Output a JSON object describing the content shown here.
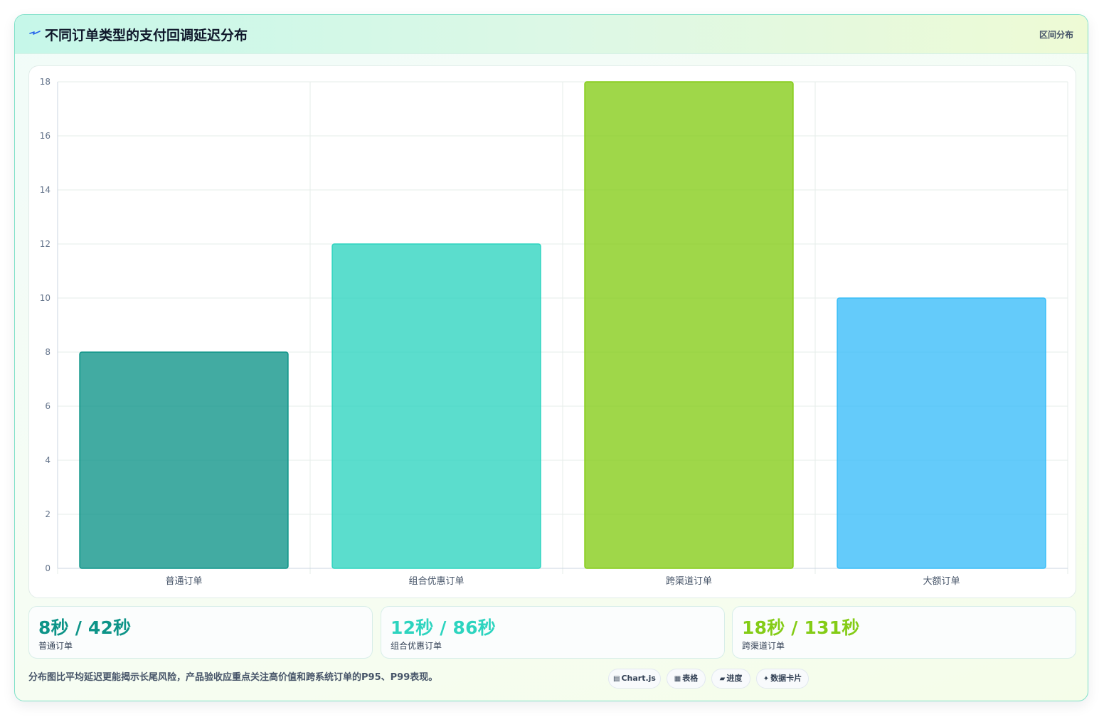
{
  "header": {
    "icon": "lightning-icon",
    "title": "不同订单类型的支付回调延迟分布",
    "tag": "区间分布"
  },
  "colors": {
    "teal_dark": "#0d9488",
    "teal_light": "#2dd4bf",
    "lime": "#84cc16",
    "sky": "#38bdf8"
  },
  "chart_data": {
    "type": "bar",
    "categories": [
      "普通订单",
      "组合优惠订单",
      "跨渠道订单",
      "大额订单"
    ],
    "values": [
      8,
      12,
      18,
      10
    ],
    "bar_colors": [
      "#0d9488",
      "#2dd4bf",
      "#84cc16",
      "#38bdf8"
    ],
    "ylim": [
      0,
      18
    ],
    "yticks": [
      0,
      2,
      4,
      6,
      8,
      10,
      12,
      14,
      16,
      18
    ],
    "grid": true,
    "title": "",
    "xlabel": "",
    "ylabel": ""
  },
  "stats": [
    {
      "value": "8秒 / 42秒",
      "label": "普通订单",
      "color": "#0d9488"
    },
    {
      "value": "12秒 / 86秒",
      "label": "组合优惠订单",
      "color": "#2dd4bf"
    },
    {
      "value": "18秒 / 131秒",
      "label": "跨渠道订单",
      "color": "#84cc16"
    }
  ],
  "footnote": "分布图比平均延迟更能揭示长尾风险，产品验收应重点关注高价值和跨系统订单的P95、P99表现。",
  "chips": [
    {
      "icon": "chart-icon",
      "label": "Chart.js"
    },
    {
      "icon": "table-icon",
      "label": "表格"
    },
    {
      "icon": "progress-icon",
      "label": "进度"
    },
    {
      "icon": "sparkle-icon",
      "label": "数据卡片"
    }
  ]
}
